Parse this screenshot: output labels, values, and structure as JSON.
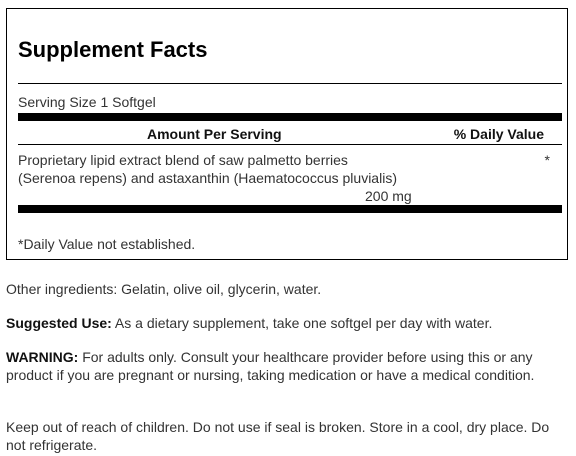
{
  "supplement_facts": {
    "title": "Supplement Facts",
    "serving_size": "Serving Size 1 Softgel",
    "header_amount": "Amount Per Serving",
    "header_daily_value": "% Daily Value",
    "ingredients": [
      {
        "name": "Proprietary lipid extract blend of saw palmetto berries (Serenoa repens) and astaxanthin (Haematococcus pluvialis)",
        "amount": "200 mg",
        "daily_value": "*"
      }
    ],
    "footnote": "*Daily Value not established."
  },
  "other_ingredients": "Other ingredients: Gelatin, olive oil, glycerin, water.",
  "suggested_use": {
    "label": "Suggested Use:",
    "text": " As a dietary supplement, take one softgel per day with water."
  },
  "warning": {
    "label": "WARNING:",
    "text": " For adults only. Consult your healthcare provider before using this or any product if you are pregnant or nursing, taking medication or have a medical condition."
  },
  "storage": "Keep out of reach of children. Do not use if seal is broken. Store in a cool, dry place. Do not refrigerate."
}
